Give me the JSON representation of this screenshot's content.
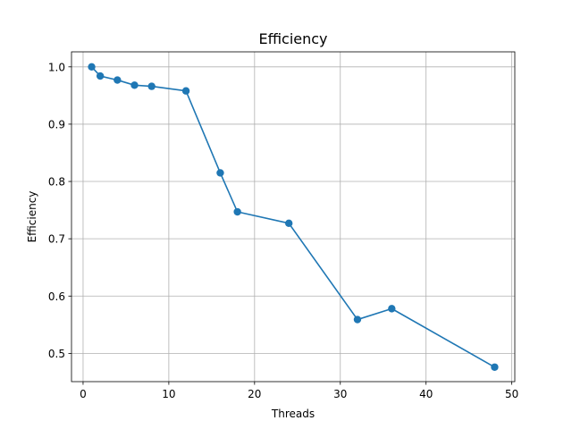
{
  "chart_data": {
    "type": "line",
    "title": "Efficiency",
    "xlabel": "Threads",
    "ylabel": "Efficiency",
    "xlim": [
      -1.35,
      50.35
    ],
    "ylim": [
      0.4507,
      1.0262
    ],
    "xticks": [
      0,
      10,
      20,
      30,
      40,
      50
    ],
    "xtick_labels": [
      "0",
      "10",
      "20",
      "30",
      "40",
      "50"
    ],
    "yticks": [
      0.5,
      0.6,
      0.7,
      0.8,
      0.9,
      1.0
    ],
    "ytick_labels": [
      "0.5",
      "0.6",
      "0.7",
      "0.8",
      "0.9",
      "1.0"
    ],
    "grid": true,
    "series": [
      {
        "name": "Efficiency",
        "color": "#1f77b4",
        "marker": "circle",
        "x": [
          1,
          2,
          4,
          6,
          8,
          12,
          16,
          18,
          24,
          32,
          36,
          48
        ],
        "values": [
          1.0,
          0.984,
          0.977,
          0.968,
          0.966,
          0.958,
          0.815,
          0.747,
          0.727,
          0.559,
          0.578,
          0.476
        ]
      }
    ]
  }
}
